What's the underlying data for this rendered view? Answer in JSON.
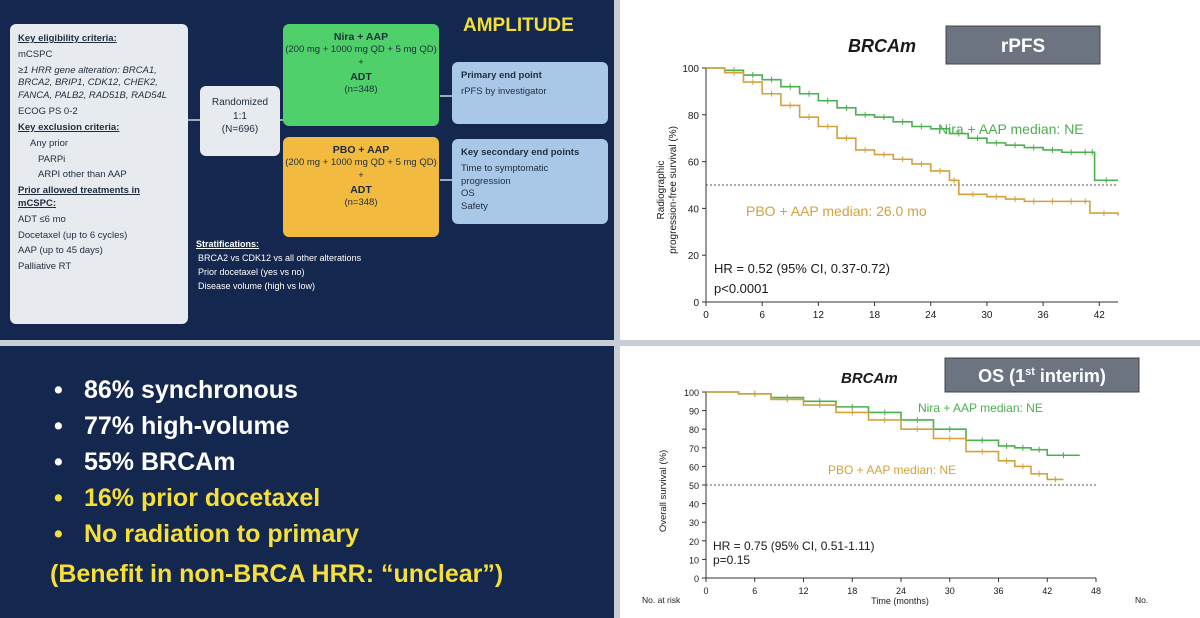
{
  "design": {
    "title": "AMPLITUDE",
    "criteria": {
      "eligibility_heading": "Key eligibility criteria:",
      "eligibility_items": [
        "mCSPC",
        "≥1 HRR gene alteration: BRCA1, BRCA2, BRIP1, CDK12, CHEK2, FANCA, PALB2, RAD51B, RAD54L",
        "ECOG PS 0-2"
      ],
      "exclusion_heading": "Key exclusion criteria:",
      "exclusion_items": [
        "Any prior",
        "PARPi",
        "ARPI other than AAP"
      ],
      "prior_heading": "Prior allowed treatments in mCSPC:",
      "prior_items": [
        "ADT ≤6 mo",
        "Docetaxel (up to 6 cycles)",
        "AAP (up to 45 days)",
        "Palliative RT"
      ]
    },
    "randomization": {
      "label": "Randomized",
      "ratio": "1:1",
      "n": "(N=696)"
    },
    "arm1": {
      "title": "Nira + AAP",
      "dose": "(200 mg + 1000 mg QD + 5 mg QD)",
      "plus": "+",
      "adt": "ADT",
      "n": "(n=348)"
    },
    "arm2": {
      "title": "PBO + AAP",
      "dose": "(200 mg + 1000 mg QD + 5 mg QD)",
      "plus": "+",
      "adt": "ADT",
      "n": "(n=348)"
    },
    "primary": {
      "title": "Primary end point",
      "items": [
        "rPFS by investigator"
      ]
    },
    "secondary": {
      "title": "Key secondary end points",
      "items": [
        "Time to symptomatic progression",
        "OS",
        "Safety"
      ]
    },
    "stratifications": {
      "title": "Stratifications:",
      "items": [
        "BRCA2 vs CDK12 vs all other alterations",
        "Prior docetaxel (yes vs no)",
        "Disease volume (high vs low)"
      ]
    }
  },
  "bullets": {
    "items": [
      "86% synchronous",
      "77% high-volume",
      "55% BRCAm",
      "16% prior docetaxel",
      "No radiation to primary"
    ],
    "note": "(Benefit in non-BRCA HRR: “unclear”)"
  },
  "colors": {
    "nira": "#4caf50",
    "pbo": "#d4a23c",
    "title_yellow": "#f2de3c",
    "arm1": "#4fd06a",
    "arm2": "#f2bb3f",
    "background": "#14274e"
  },
  "chart_data": [
    {
      "type": "line",
      "subgroup": "BRCAm",
      "title": "rPFS",
      "ylabel": "Radiographic progression-free survival (%)",
      "xlabel": "",
      "xlim": [
        0,
        44
      ],
      "ylim": [
        0,
        100
      ],
      "xticks": [
        0,
        6,
        12,
        18,
        24,
        30,
        36,
        42
      ],
      "yticks": [
        0,
        20,
        40,
        60,
        80,
        100
      ],
      "reference_line_y": 50,
      "series": [
        {
          "name": "Nira + AAP median: NE",
          "x": [
            0,
            2,
            4,
            6,
            8,
            10,
            12,
            14,
            16,
            18,
            20,
            22,
            24,
            26,
            28,
            30,
            32,
            34,
            36,
            38,
            40,
            41,
            41.5,
            44
          ],
          "y": [
            100,
            99,
            97,
            95,
            92,
            89,
            86,
            83,
            80,
            79,
            77,
            75,
            74,
            72,
            70,
            68,
            67,
            66,
            65,
            64,
            64,
            64,
            52,
            52
          ]
        },
        {
          "name": "PBO + AAP median: 26.0 mo",
          "x": [
            0,
            2,
            4,
            6,
            8,
            10,
            12,
            14,
            16,
            18,
            20,
            22,
            24,
            26,
            27,
            30,
            32,
            34,
            36,
            38,
            40,
            41,
            44
          ],
          "y": [
            100,
            98,
            94,
            89,
            84,
            79,
            75,
            70,
            65,
            63,
            61,
            59,
            56,
            52,
            46,
            45,
            44,
            43,
            43,
            43,
            43,
            38,
            37
          ]
        }
      ],
      "annotations": [
        "HR = 0.52 (95% CI, 0.37-0.72)",
        "p<0.0001"
      ]
    },
    {
      "type": "line",
      "subgroup": "BRCAm",
      "title": "OS (1st interim)",
      "ylabel": "Overall survival (%)",
      "xlabel": "Time (months)",
      "xlim": [
        0,
        48
      ],
      "ylim": [
        0,
        100
      ],
      "xticks": [
        0,
        6,
        12,
        18,
        24,
        30,
        36,
        42,
        48
      ],
      "yticks": [
        0,
        10,
        20,
        30,
        40,
        50,
        60,
        70,
        80,
        90,
        100
      ],
      "reference_line_y": 50,
      "series": [
        {
          "name": "Nira + AAP median: NE",
          "x": [
            0,
            4,
            8,
            12,
            16,
            20,
            24,
            28,
            32,
            36,
            38,
            40,
            42,
            46
          ],
          "y": [
            100,
            99,
            97,
            95,
            92,
            89,
            85,
            80,
            74,
            71,
            70,
            69,
            66,
            66
          ]
        },
        {
          "name": "PBO + AAP median: NE",
          "x": [
            0,
            4,
            8,
            12,
            16,
            20,
            24,
            28,
            32,
            36,
            38,
            40,
            42,
            44
          ],
          "y": [
            100,
            99,
            96,
            93,
            89,
            85,
            80,
            75,
            68,
            63,
            60,
            56,
            53,
            53
          ]
        }
      ],
      "annotations": [
        "HR = 0.75 (95% CI, 0.51-1.11)",
        "p=0.15"
      ],
      "side_labels": {
        "at_risk": "No. at risk",
        "right": "No."
      }
    }
  ]
}
